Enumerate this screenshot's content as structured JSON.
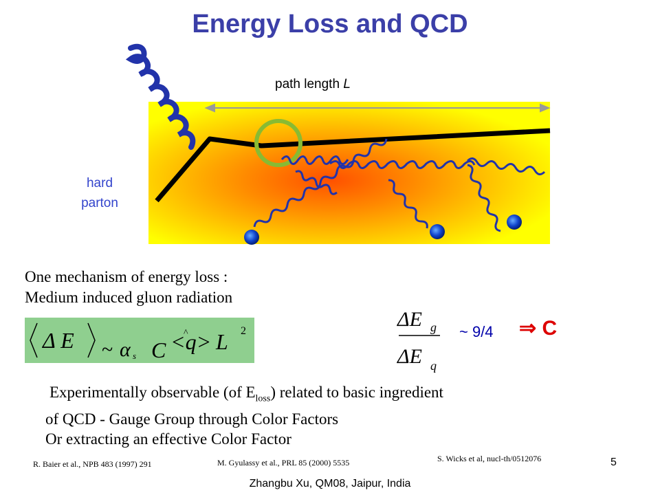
{
  "slide": {
    "title": "Energy Loss and QCD",
    "page_number": "5",
    "footer": "Zhangbu Xu, QM08, Jaipur, India"
  },
  "diagram": {
    "path_label_prefix": "path length ",
    "path_label_var": "L",
    "hard_parton_line1": "hard",
    "hard_parton_line2": "parton",
    "medium_colors": {
      "outer": "#ffff00",
      "inner": "#ff8800",
      "core": "#ff5500"
    },
    "circle_color": "#88bb33",
    "gluon_color": "#2233aa",
    "dot_color": "#1144cc"
  },
  "text": {
    "mechanism_line1": "One mechanism of energy loss :",
    "mechanism_line2": "Medium induced gluon radiation",
    "body_line1_a": "Experimentally observable (of E",
    "body_line1_sub": "loss",
    "body_line1_b": ") related to basic ingredient",
    "body_line2": "of QCD - Gauge Group  through Color Factors",
    "body_line3": "Or extracting an effective Color Factor"
  },
  "formula": {
    "box_color": "#8fcf8f",
    "delta_e": "Δ E",
    "tilde": "~",
    "alpha": "α",
    "alpha_sub": "s",
    "c": "C",
    "q_expr": "<q>",
    "hat": "^",
    "l": "L",
    "exp": "2"
  },
  "ratio": {
    "num": "ΔE",
    "num_sub": "g",
    "den": "ΔE",
    "den_sub": "q",
    "approx": "~ 9/4",
    "implies_symbol": "⇒",
    "implies_target": "C"
  },
  "references": {
    "ref1": "R. Baier et al., NPB 483 (1997) 291",
    "ref2": "M. Gyulassy et al., PRL 85 (2000) 5535",
    "ref3": "S. Wicks et al, nucl-th/0512076"
  }
}
